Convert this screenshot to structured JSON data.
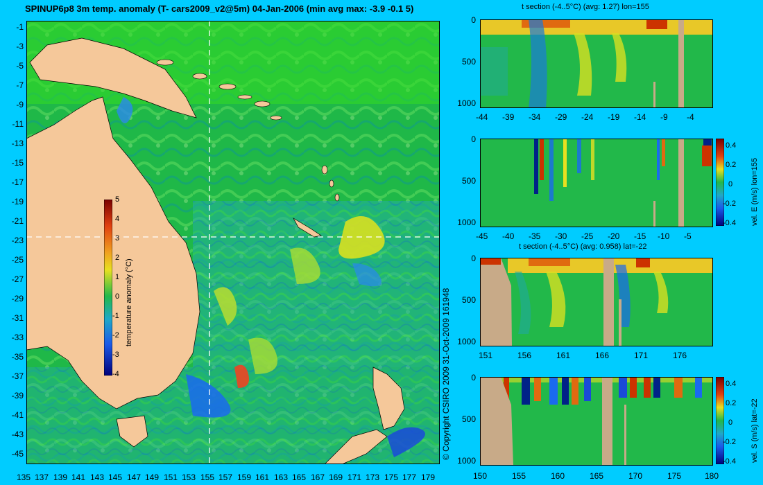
{
  "header": {
    "title": "SPINUP6p8 3m temp. anomaly (T- cars2009_v2@5m) 04-Jan-2006 (min avg max: -3.9 -0.1 5)"
  },
  "footer": {
    "copyright": "© Copyright CSIRO 2009   31-Oct-2009 161948"
  },
  "colors": {
    "background": "#00ccff",
    "land": "#f5c89a",
    "section_land": "#c8aa88",
    "ocean_mid": "#22b84a",
    "warm": "#e8e020",
    "hot": "#cc3300",
    "cold": "#1a6aee"
  },
  "chart_data": [
    {
      "type": "heatmap",
      "name": "main-map",
      "title": "SPINUP6p8 3m temp. anomaly (T- cars2009_v2@5m) 04-Jan-2006 (min avg max: -3.9 -0.1 5)",
      "xlim": [
        135,
        180
      ],
      "ylim": [
        -45,
        0
      ],
      "x_ticks": [
        "135",
        "137",
        "139",
        "141",
        "143",
        "145",
        "147",
        "149",
        "151",
        "153",
        "155",
        "157",
        "159",
        "161",
        "163",
        "165",
        "167",
        "169",
        "171",
        "173",
        "175",
        "177",
        "179"
      ],
      "y_ticks": [
        "-1",
        "-3",
        "-5",
        "-7",
        "-9",
        "-11",
        "-13",
        "-15",
        "-17",
        "-19",
        "-21",
        "-23",
        "-25",
        "-27",
        "-29",
        "-31",
        "-33",
        "-35",
        "-37",
        "-39",
        "-41",
        "-43",
        "-45"
      ],
      "crosshair": {
        "lon": 155,
        "lat": -22
      },
      "stats": {
        "min": -3.9,
        "avg": -0.1,
        "max": 5
      },
      "colorbar": {
        "label": "temperature anomaly (°C)",
        "ticks": [
          "5",
          "4",
          "3",
          "2",
          "1",
          "0",
          "-1",
          "-2",
          "-3",
          "-4"
        ],
        "range": [
          -4,
          5
        ]
      }
    },
    {
      "type": "heatmap",
      "name": "t-section-lon",
      "title": "t section (-4..5°C) (avg: 1.27) lon=155",
      "x_ticks": [
        "-44",
        "-39",
        "-34",
        "-29",
        "-24",
        "-19",
        "-14",
        "-9",
        "-4"
      ],
      "y_ticks": [
        "0",
        "500",
        "1000"
      ],
      "xlim": [
        -45,
        0
      ],
      "ylim": [
        1000,
        0
      ]
    },
    {
      "type": "heatmap",
      "name": "velE-section-lon",
      "title": "",
      "x_ticks": [
        "-45",
        "-40",
        "-35",
        "-30",
        "-25",
        "-20",
        "-15",
        "-10",
        "-5"
      ],
      "y_ticks": [
        "0",
        "500",
        "1000"
      ],
      "xlim": [
        -45,
        0
      ],
      "ylim": [
        1000,
        0
      ],
      "colorbar": {
        "label": "vel. E (m/s) lon=155",
        "ticks": [
          "0.4",
          "0.2",
          "0",
          "-0.2",
          "-0.4"
        ],
        "range": [
          -0.4,
          0.4
        ]
      }
    },
    {
      "type": "heatmap",
      "name": "t-section-lat",
      "title": "t section (-4..5°C) (avg: 0.958) lat=-22",
      "x_ticks": [
        "151",
        "156",
        "161",
        "166",
        "171",
        "176"
      ],
      "y_ticks": [
        "0",
        "500",
        "1000"
      ],
      "xlim": [
        150,
        180
      ],
      "ylim": [
        1000,
        0
      ]
    },
    {
      "type": "heatmap",
      "name": "velS-section-lat",
      "title": "",
      "x_ticks": [
        "150",
        "155",
        "160",
        "165",
        "170",
        "175",
        "180"
      ],
      "y_ticks": [
        "0",
        "500",
        "1000"
      ],
      "xlim": [
        150,
        180
      ],
      "ylim": [
        1000,
        0
      ],
      "colorbar": {
        "label": "vel. S (m/s) lat=-22",
        "ticks": [
          "0.4",
          "0.2",
          "0",
          "-0.2",
          "-0.4"
        ],
        "range": [
          -0.4,
          0.4
        ]
      }
    }
  ]
}
